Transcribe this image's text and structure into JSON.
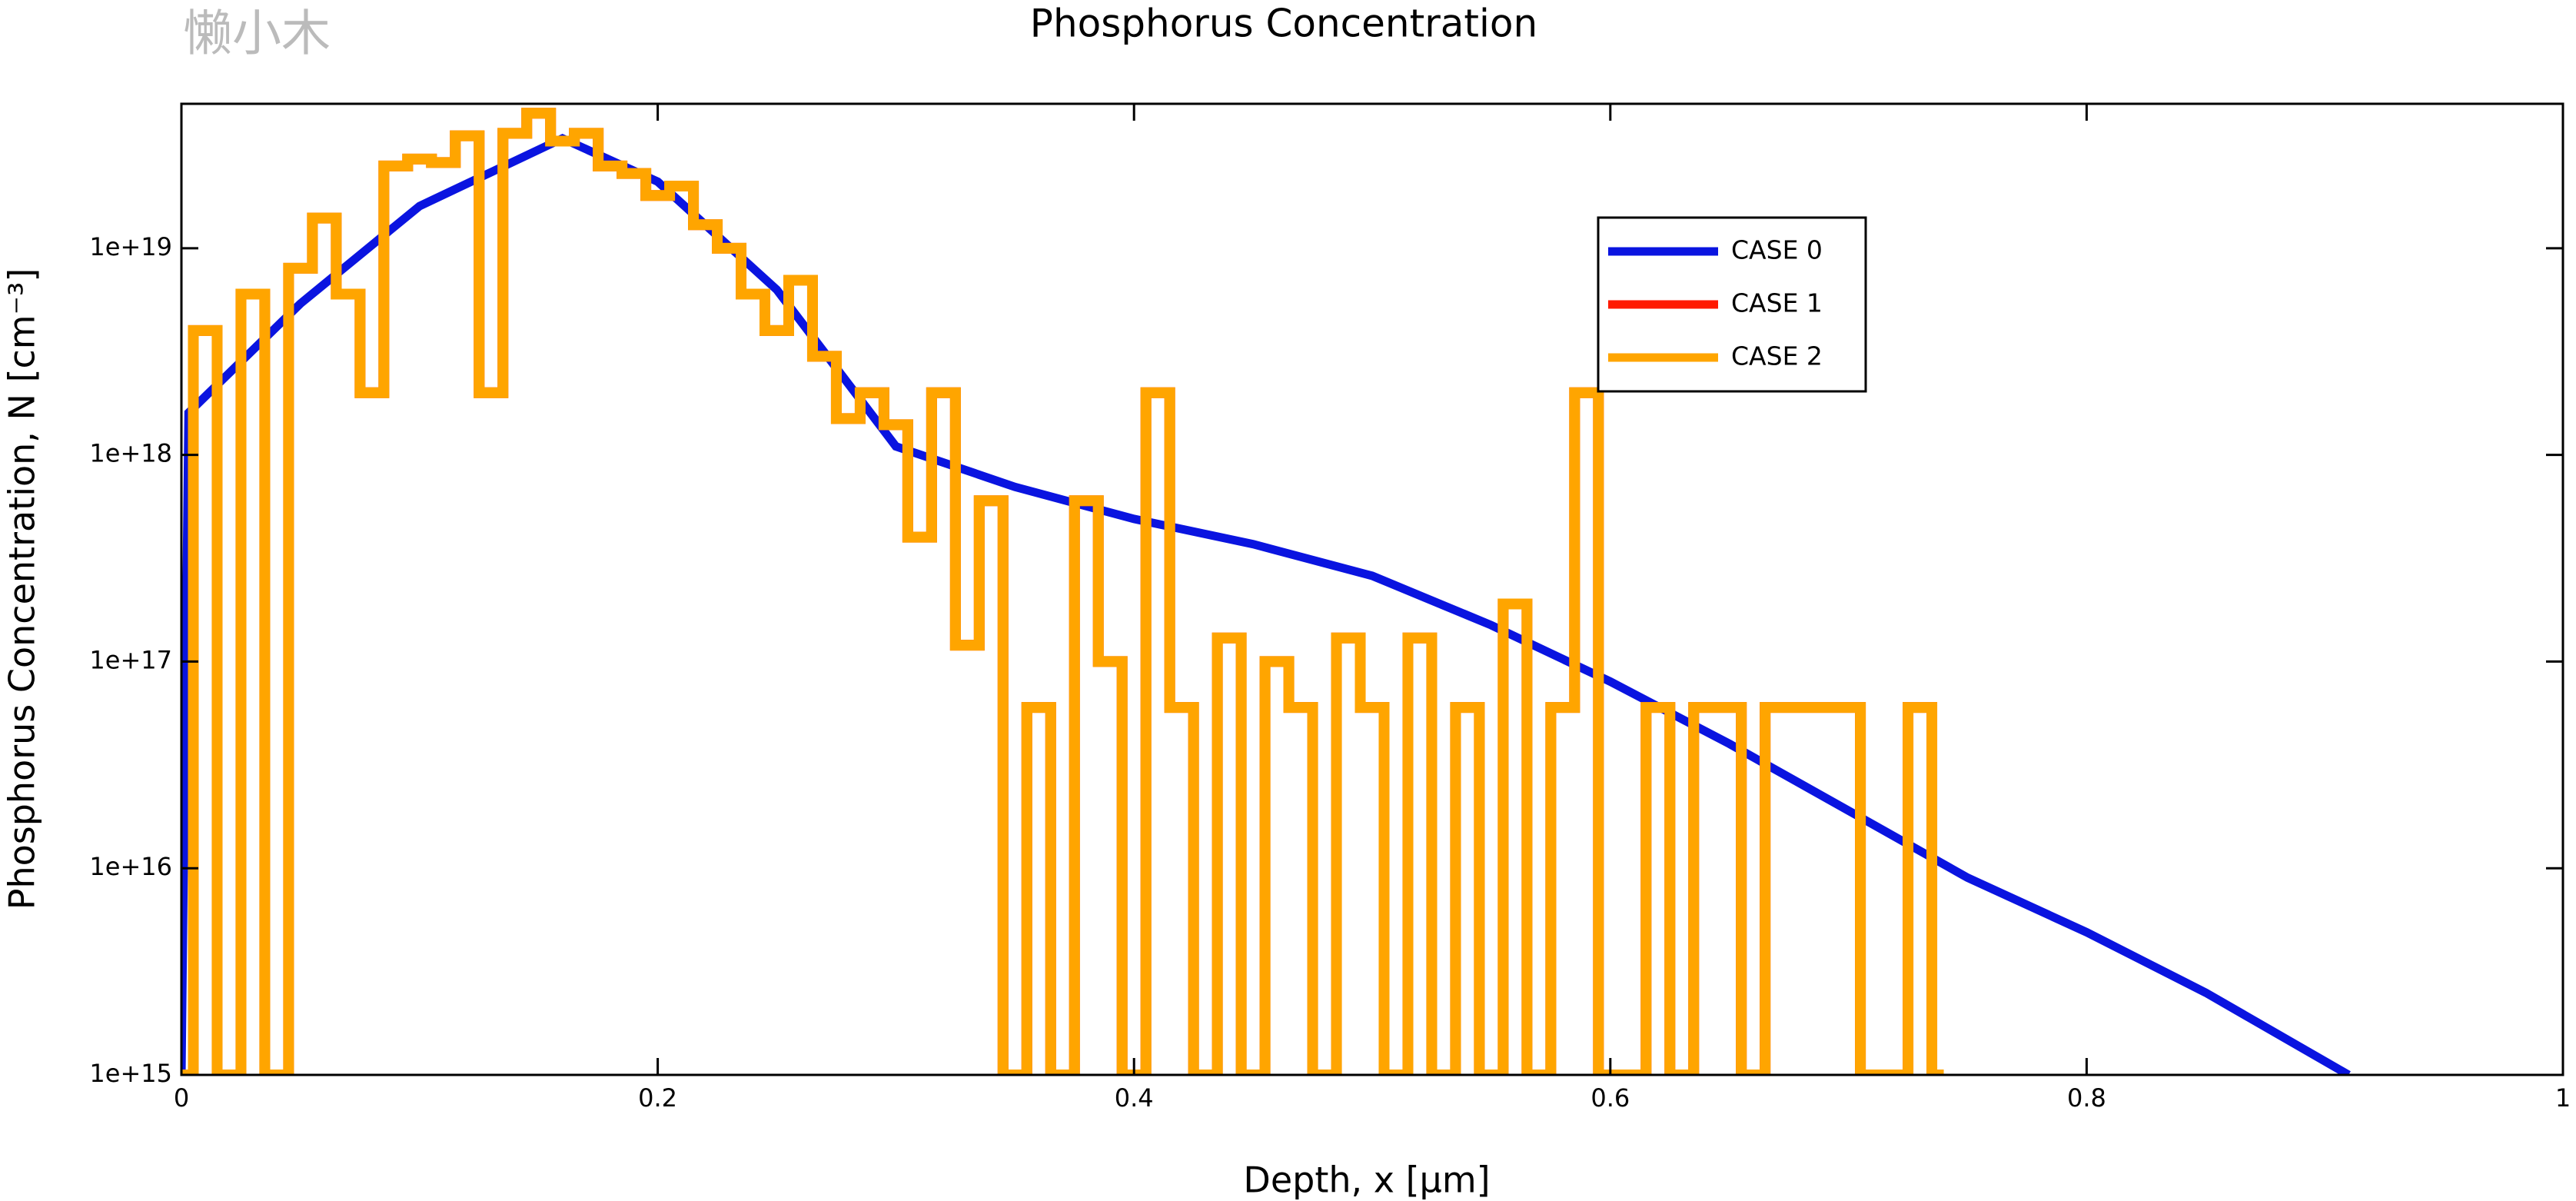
{
  "chart_data": {
    "type": "line",
    "title": "Phosphorus Concentration",
    "watermark": "懒小木",
    "x_label": "Depth, x [µm]",
    "y_label": "Phosphorus Concentration, N [cm⁻³]",
    "log_y": true,
    "xlim": [
      0,
      1
    ],
    "ylim": [
      1000000000000000.0,
      5e+19
    ],
    "xticks": [
      0,
      0.2,
      0.4,
      0.6,
      0.8,
      1
    ],
    "yticks": [
      {
        "value": 1000000000000000.0,
        "label": "1e+15"
      },
      {
        "value": 1e+16,
        "label": "1e+16"
      },
      {
        "value": 1e+17,
        "label": "1e+17"
      },
      {
        "value": 1e+18,
        "label": "1e+18"
      },
      {
        "value": 1e+19,
        "label": "1e+19"
      }
    ],
    "legend_position": "upper-right",
    "series": [
      {
        "name": "CASE 0",
        "color": "#0a14e0",
        "drawstyle": "default",
        "x": [
          0,
          0.003,
          0.05,
          0.1,
          0.16,
          0.2,
          0.25,
          0.3,
          0.35,
          0.4,
          0.45,
          0.5,
          0.55,
          0.6,
          0.65,
          0.7,
          0.75,
          0.8,
          0.85,
          0.91
        ],
        "values": [
          1000000000000000.0,
          1.6e+18,
          5.4e+18,
          1.6e+19,
          3.4e+19,
          2.1e+19,
          6.3e+18,
          1.1e+18,
          7e+17,
          4.9e+17,
          3.7e+17,
          2.6e+17,
          1.5e+17,
          8e+16,
          4e+16,
          1.9e+16,
          9000000000000000.0,
          4900000000000000.0,
          2500000000000000.0,
          1000000000000000.0
        ]
      },
      {
        "name": "CASE 1",
        "color": "#ff1a00",
        "drawstyle": "steps-mid",
        "x": [
          0,
          0.01,
          0.02,
          0.03,
          0.04,
          0.05,
          0.06,
          0.07,
          0.08,
          0.09,
          0.1,
          0.11,
          0.12,
          0.13,
          0.14,
          0.15,
          0.16,
          0.17,
          0.18,
          0.19,
          0.2,
          0.21,
          0.22,
          0.23,
          0.24,
          0.25,
          0.26,
          0.27,
          0.28,
          0.29,
          0.3,
          0.31,
          0.32,
          0.33,
          0.34,
          0.35,
          0.36,
          0.37,
          0.38,
          0.39,
          0.4,
          0.41,
          0.42,
          0.43,
          0.44,
          0.45,
          0.46,
          0.47,
          0.48,
          0.49,
          0.5,
          0.51,
          0.52,
          0.53,
          0.54,
          0.55,
          0.56,
          0.57,
          0.58,
          0.59,
          0.6,
          0.61,
          0.62,
          0.63,
          0.64,
          0.65,
          0.66,
          0.67,
          0.68,
          0.69,
          0.7,
          0.71,
          0.72,
          0.73,
          0.74
        ],
        "values": [
          1000000000000000.0,
          4e+18,
          1000000000000000.0,
          6e+18,
          1000000000000000.0,
          8e+18,
          1.4e+19,
          6e+18,
          2e+18,
          2.5e+19,
          2.7e+19,
          2.6e+19,
          3.5e+19,
          2e+18,
          3.6e+19,
          4.5e+19,
          3.3e+19,
          3.6e+19,
          2.5e+19,
          2.3e+19,
          1.8e+19,
          2e+19,
          1.3e+19,
          1e+19,
          6e+18,
          4e+18,
          7e+18,
          3e+18,
          1.5e+18,
          2e+18,
          1.4e+18,
          4e+17,
          2e+18,
          1.2e+17,
          6e+17,
          1000000000000000.0,
          6e+16,
          1000000000000000.0,
          6e+17,
          1e+17,
          1000000000000000.0,
          2e+18,
          6e+16,
          1000000000000000.0,
          1.3e+17,
          1000000000000000.0,
          1e+17,
          6e+16,
          1000000000000000.0,
          1.3e+17,
          6e+16,
          1000000000000000.0,
          1.3e+17,
          1000000000000000.0,
          6e+16,
          1000000000000000.0,
          1.9e+17,
          1000000000000000.0,
          6e+16,
          2e+18,
          1000000000000000.0,
          1000000000000000.0,
          6e+16,
          1000000000000000.0,
          6e+16,
          6e+16,
          1000000000000000.0,
          6e+16,
          6e+16,
          6e+16,
          6e+16,
          1000000000000000.0,
          1000000000000000.0,
          6e+16,
          1000000000000000.0
        ]
      },
      {
        "name": "CASE 2",
        "color": "#ffa500",
        "drawstyle": "steps-mid",
        "x": [
          0,
          0.01,
          0.02,
          0.03,
          0.04,
          0.05,
          0.06,
          0.07,
          0.08,
          0.09,
          0.1,
          0.11,
          0.12,
          0.13,
          0.14,
          0.15,
          0.16,
          0.17,
          0.18,
          0.19,
          0.2,
          0.21,
          0.22,
          0.23,
          0.24,
          0.25,
          0.26,
          0.27,
          0.28,
          0.29,
          0.3,
          0.31,
          0.32,
          0.33,
          0.34,
          0.35,
          0.36,
          0.37,
          0.38,
          0.39,
          0.4,
          0.41,
          0.42,
          0.43,
          0.44,
          0.45,
          0.46,
          0.47,
          0.48,
          0.49,
          0.5,
          0.51,
          0.52,
          0.53,
          0.54,
          0.55,
          0.56,
          0.57,
          0.58,
          0.59,
          0.6,
          0.61,
          0.62,
          0.63,
          0.64,
          0.65,
          0.66,
          0.67,
          0.68,
          0.69,
          0.7,
          0.71,
          0.72,
          0.73,
          0.74
        ],
        "values": [
          1000000000000000.0,
          4e+18,
          1000000000000000.0,
          6e+18,
          1000000000000000.0,
          8e+18,
          1.4e+19,
          6e+18,
          2e+18,
          2.5e+19,
          2.7e+19,
          2.6e+19,
          3.5e+19,
          2e+18,
          3.6e+19,
          4.5e+19,
          3.3e+19,
          3.6e+19,
          2.5e+19,
          2.3e+19,
          1.8e+19,
          2e+19,
          1.3e+19,
          1e+19,
          6e+18,
          4e+18,
          7e+18,
          3e+18,
          1.5e+18,
          2e+18,
          1.4e+18,
          4e+17,
          2e+18,
          1.2e+17,
          6e+17,
          1000000000000000.0,
          6e+16,
          1000000000000000.0,
          6e+17,
          1e+17,
          1000000000000000.0,
          2e+18,
          6e+16,
          1000000000000000.0,
          1.3e+17,
          1000000000000000.0,
          1e+17,
          6e+16,
          1000000000000000.0,
          1.3e+17,
          6e+16,
          1000000000000000.0,
          1.3e+17,
          1000000000000000.0,
          6e+16,
          1000000000000000.0,
          1.9e+17,
          1000000000000000.0,
          6e+16,
          2e+18,
          1000000000000000.0,
          1000000000000000.0,
          6e+16,
          1000000000000000.0,
          6e+16,
          6e+16,
          1000000000000000.0,
          6e+16,
          6e+16,
          6e+16,
          6e+16,
          1000000000000000.0,
          1000000000000000.0,
          6e+16,
          1000000000000000.0
        ]
      }
    ]
  }
}
